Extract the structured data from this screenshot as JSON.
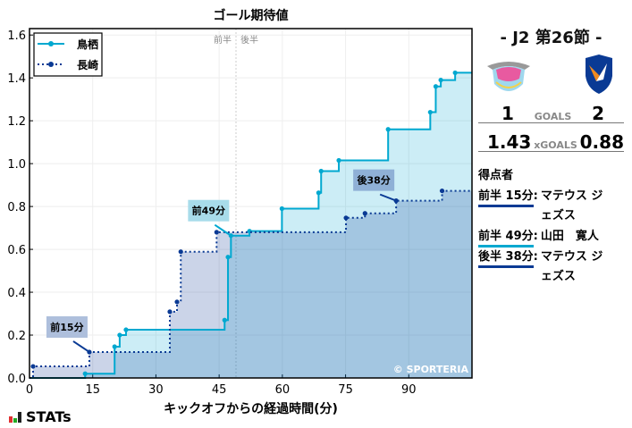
{
  "chart_data": {
    "type": "line",
    "title": "ゴール期待値",
    "xlabel": "キックオフからの経過時間(分)",
    "ylabel": "",
    "xlim": [
      0,
      105
    ],
    "ylim": [
      0,
      1.63
    ],
    "xticks": [
      0,
      15,
      30,
      45,
      60,
      75,
      90
    ],
    "yticks": [
      0.0,
      0.2,
      0.4,
      0.6,
      0.8,
      1.0,
      1.2,
      1.4,
      1.6
    ],
    "grid": true,
    "legend": "top-left",
    "step": true,
    "half_line": {
      "x": 49,
      "left_label": "前半",
      "right_label": "後半"
    },
    "series": [
      {
        "name": "鳥栖",
        "color": "#00a8d0",
        "style": "solid",
        "fill": "rgba(0,165,210,0.2)",
        "x": [
          13.2,
          20.2,
          21.4,
          22.9,
          46.3,
          47.1,
          47.8,
          52.2,
          59.9,
          68.6,
          69.2,
          73.4,
          85.1,
          95.1,
          96.4,
          97.6,
          101
        ],
        "y": [
          0.02,
          0.146,
          0.2,
          0.225,
          0.27,
          0.564,
          0.664,
          0.685,
          0.79,
          0.864,
          0.965,
          1.015,
          1.16,
          1.24,
          1.36,
          1.39,
          1.424
        ]
      },
      {
        "name": "長崎",
        "color": "#0a3a94",
        "style": "dotted",
        "fill": "rgba(20,60,150,0.22)",
        "x": [
          0.85,
          14.2,
          33.3,
          35,
          35.9,
          44.4,
          75.1,
          79.6,
          87,
          97.9
        ],
        "y": [
          0.054,
          0.121,
          0.309,
          0.355,
          0.589,
          0.68,
          0.747,
          0.768,
          0.827,
          0.873
        ]
      }
    ],
    "annotations": [
      {
        "text": "前15分",
        "x": 14.2,
        "y": 0.121,
        "series": "長崎",
        "color": "#aebfdc"
      },
      {
        "text": "前49分",
        "x": 47.8,
        "y": 0.664,
        "series": "鳥栖",
        "color": "#a8dcea"
      },
      {
        "text": "後38分",
        "x": 87,
        "y": 0.827,
        "series": "長崎",
        "color": "#8fb0d6"
      }
    ],
    "watermark": "© SPORTERIA"
  },
  "match": {
    "title": "- J2 第26節 -",
    "home_goals": "1",
    "away_goals": "2",
    "goals_label": "GOALS",
    "home_xg": "1.43",
    "away_xg": "0.88",
    "xg_label": "xGOALS"
  },
  "scorers": {
    "heading": "得点者",
    "items": [
      {
        "time": "前半 15分",
        "name": "マテウス ジェズス",
        "color": "#0a3a94"
      },
      {
        "time": "前半 49分",
        "name": "山田　寛人",
        "color": "#00a8d0"
      },
      {
        "time": "後半 38分",
        "name": "マテウス ジェズス",
        "color": "#0a3a94"
      }
    ]
  },
  "brand": "STATs"
}
